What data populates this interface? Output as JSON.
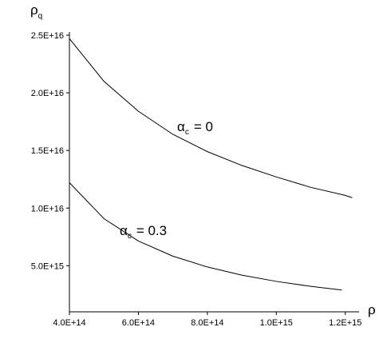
{
  "chart_data": {
    "type": "line",
    "x_label": "ρ",
    "y_label": {
      "symbol": "ρ",
      "subscript": "q"
    },
    "xlim": [
      400000000000000.0,
      1240000000000000.0
    ],
    "ylim": [
      1000000000000000.0,
      2.5e+16
    ],
    "xticks": [
      {
        "value": 400000000000000.0,
        "label": "4.0E+14"
      },
      {
        "value": 600000000000000.0,
        "label": "6.0E+14"
      },
      {
        "value": 800000000000000.0,
        "label": "8.0E+14"
      },
      {
        "value": 1000000000000000.0,
        "label": "1.0E+15"
      },
      {
        "value": 1200000000000000.0,
        "label": "1.2E+15"
      }
    ],
    "yticks": [
      {
        "value": 5000000000000000.0,
        "label": "5.0E+15"
      },
      {
        "value": 1e+16,
        "label": "1.0E+16"
      },
      {
        "value": 1.5e+16,
        "label": "1.5E+16"
      },
      {
        "value": 2e+16,
        "label": "2.0E+16"
      },
      {
        "value": 2.5e+16,
        "label": "2.5E+16"
      }
    ],
    "series": [
      {
        "color": "#000000",
        "x": [
          400000000000000.0,
          500000000000000.0,
          600000000000000.0,
          700000000000000.0,
          800000000000000.0,
          900000000000000.0,
          1000000000000000.0,
          1100000000000000.0,
          1200000000000000.0,
          1220000000000000.0
        ],
        "values": [
          2.47e+16,
          2.1e+16,
          1.84e+16,
          1.64e+16,
          1.49e+16,
          1.37e+16,
          1.27e+16,
          1.18e+16,
          1.11e+16,
          1.09e+16
        ]
      },
      {
        "color": "#000000",
        "x": [
          400000000000000.0,
          500000000000000.0,
          600000000000000.0,
          700000000000000.0,
          800000000000000.0,
          900000000000000.0,
          1000000000000000.0,
          1100000000000000.0,
          1190000000000000.0
        ],
        "values": [
          1.22e+16,
          9090000000000000.0,
          7140000000000000.0,
          5830000000000000.0,
          4890000000000000.0,
          4180000000000000.0,
          3640000000000000.0,
          3210000000000000.0,
          2890000000000000.0
        ]
      }
    ],
    "annotations": [
      {
        "symbol": "α",
        "subscript": "c",
        "text": "= 0"
      },
      {
        "symbol": "α",
        "subscript": "c",
        "text": "= 0.3"
      }
    ]
  }
}
